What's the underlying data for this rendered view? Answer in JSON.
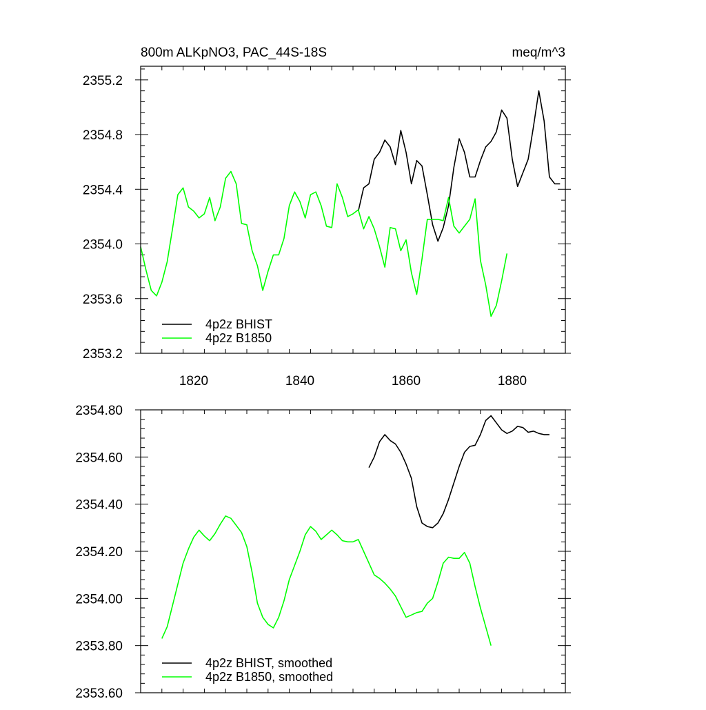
{
  "colors": {
    "bhist": "#000000",
    "b1850": "#00ff00",
    "background": "#ffffff"
  },
  "chart_data": [
    {
      "type": "line",
      "title_left": "800m ALKpNO3, PAC_44S-18S",
      "title_right": "meq/m^3",
      "xlim": [
        1810,
        1890
      ],
      "ylim": [
        2353.2,
        2355.3
      ],
      "x_ticks": [
        1820,
        1840,
        1860,
        1880
      ],
      "x_tick_labels": [
        "1820",
        "1840",
        "1860",
        "1880"
      ],
      "y_ticks": [
        2353.2,
        2353.6,
        2354.0,
        2354.4,
        2354.8,
        2355.2
      ],
      "y_tick_labels": [
        "2353.2",
        "2353.6",
        "2354.0",
        "2354.4",
        "2354.8",
        "2355.2"
      ],
      "legend_position": "bottom-left",
      "series": [
        {
          "name": "4p2z BHIST",
          "color": "#000000",
          "x": [
            1851,
            1852,
            1853,
            1854,
            1855,
            1856,
            1857,
            1858,
            1859,
            1860,
            1861,
            1862,
            1863,
            1864,
            1865,
            1866,
            1867,
            1868,
            1869,
            1870,
            1871,
            1872,
            1873,
            1874,
            1875,
            1876,
            1877,
            1878,
            1879,
            1880,
            1881,
            1882,
            1883,
            1884,
            1885,
            1886,
            1887,
            1888,
            1889
          ],
          "y": [
            2354.24,
            2354.41,
            2354.44,
            2354.62,
            2354.67,
            2354.76,
            2354.71,
            2354.58,
            2354.83,
            2354.67,
            2354.44,
            2354.61,
            2354.57,
            2354.36,
            2354.14,
            2354.02,
            2354.12,
            2354.28,
            2354.56,
            2354.77,
            2354.67,
            2354.49,
            2354.49,
            2354.61,
            2354.71,
            2354.75,
            2354.82,
            2354.98,
            2354.92,
            2354.62,
            2354.42,
            2354.52,
            2354.62,
            2354.86,
            2355.12,
            2354.9,
            2354.49,
            2354.44,
            2354.44
          ]
        },
        {
          "name": "4p2z B1850",
          "color": "#00ff00",
          "x": [
            1810,
            1811,
            1812,
            1813,
            1814,
            1815,
            1816,
            1817,
            1818,
            1819,
            1820,
            1821,
            1822,
            1823,
            1824,
            1825,
            1826,
            1827,
            1828,
            1829,
            1830,
            1831,
            1832,
            1833,
            1834,
            1835,
            1836,
            1837,
            1838,
            1839,
            1840,
            1841,
            1842,
            1843,
            1844,
            1845,
            1846,
            1847,
            1848,
            1849,
            1850,
            1851,
            1852,
            1853,
            1854,
            1855,
            1856,
            1857,
            1858,
            1859,
            1860,
            1861,
            1862,
            1863,
            1864,
            1865,
            1866,
            1867,
            1868,
            1869,
            1870,
            1871,
            1872,
            1873,
            1874,
            1875,
            1876,
            1877,
            1878,
            1879
          ],
          "y": [
            2353.98,
            2353.81,
            2353.66,
            2353.62,
            2353.72,
            2353.87,
            2354.11,
            2354.36,
            2354.41,
            2354.27,
            2354.24,
            2354.19,
            2354.22,
            2354.34,
            2354.17,
            2354.27,
            2354.48,
            2354.53,
            2354.44,
            2354.15,
            2354.14,
            2353.95,
            2353.84,
            2353.66,
            2353.8,
            2353.92,
            2353.92,
            2354.04,
            2354.28,
            2354.38,
            2354.31,
            2354.19,
            2354.36,
            2354.38,
            2354.28,
            2354.13,
            2354.12,
            2354.44,
            2354.34,
            2354.2,
            2354.22,
            2354.25,
            2354.11,
            2354.2,
            2354.11,
            2353.98,
            2353.83,
            2354.12,
            2354.11,
            2353.95,
            2354.03,
            2353.79,
            2353.63,
            2353.89,
            2354.18,
            2354.18,
            2354.18,
            2354.17,
            2354.34,
            2354.13,
            2354.08,
            2354.13,
            2354.18,
            2354.33,
            2353.88,
            2353.7,
            2353.47,
            2353.55,
            2353.73,
            2353.93
          ]
        }
      ]
    },
    {
      "type": "line",
      "xlim": [
        1810,
        1890
      ],
      "ylim": [
        2353.6,
        2354.8
      ],
      "x_ticks": [
        1820,
        1840,
        1860,
        1880
      ],
      "y_ticks": [
        2353.6,
        2353.8,
        2354.0,
        2354.2,
        2354.4,
        2354.6,
        2354.8
      ],
      "y_tick_labels": [
        "2353.60",
        "2353.80",
        "2354.00",
        "2354.20",
        "2354.40",
        "2354.60",
        "2354.80"
      ],
      "legend_position": "bottom-left",
      "series": [
        {
          "name": "4p2z BHIST, smoothed",
          "color": "#000000",
          "x": [
            1853,
            1854,
            1855,
            1856,
            1857,
            1858,
            1859,
            1860,
            1861,
            1862,
            1863,
            1864,
            1865,
            1866,
            1867,
            1868,
            1869,
            1870,
            1871,
            1872,
            1873,
            1874,
            1875,
            1876,
            1877,
            1878,
            1879,
            1880,
            1881,
            1882,
            1883,
            1884,
            1885,
            1886,
            1887
          ],
          "y": [
            2354.555,
            2354.6,
            2354.665,
            2354.695,
            2354.67,
            2354.655,
            2354.62,
            2354.57,
            2354.51,
            2354.39,
            2354.32,
            2354.305,
            2354.3,
            2354.32,
            2354.36,
            2354.42,
            2354.49,
            2354.56,
            2354.62,
            2354.645,
            2354.65,
            2354.695,
            2354.755,
            2354.775,
            2354.745,
            2354.715,
            2354.7,
            2354.71,
            2354.73,
            2354.725,
            2354.705,
            2354.71,
            2354.7,
            2354.695,
            2354.695
          ]
        },
        {
          "name": "4p2z B1850, smoothed",
          "color": "#00ff00",
          "x": [
            1814,
            1815,
            1816,
            1817,
            1818,
            1819,
            1820,
            1821,
            1822,
            1823,
            1824,
            1825,
            1826,
            1827,
            1828,
            1829,
            1830,
            1831,
            1832,
            1833,
            1834,
            1835,
            1836,
            1837,
            1838,
            1839,
            1840,
            1841,
            1842,
            1843,
            1844,
            1845,
            1846,
            1847,
            1848,
            1849,
            1850,
            1851,
            1852,
            1853,
            1854,
            1855,
            1856,
            1857,
            1858,
            1859,
            1860,
            1861,
            1862,
            1863,
            1864,
            1865,
            1866,
            1867,
            1868,
            1869,
            1870,
            1871,
            1872,
            1873,
            1874,
            1875,
            1876
          ],
          "y": [
            2353.83,
            2353.88,
            2353.97,
            2354.06,
            2354.15,
            2354.21,
            2354.26,
            2354.29,
            2354.265,
            2354.245,
            2354.275,
            2354.315,
            2354.35,
            2354.34,
            2354.31,
            2354.28,
            2354.22,
            2354.11,
            2353.98,
            2353.92,
            2353.89,
            2353.875,
            2353.92,
            2353.99,
            2354.08,
            2354.14,
            2354.2,
            2354.27,
            2354.305,
            2354.285,
            2354.25,
            2354.27,
            2354.29,
            2354.27,
            2354.245,
            2354.24,
            2354.24,
            2354.25,
            2354.2,
            2354.15,
            2354.1,
            2354.085,
            2354.065,
            2354.04,
            2354.01,
            2353.965,
            2353.92,
            2353.93,
            2353.94,
            2353.945,
            2353.98,
            2354.0,
            2354.07,
            2354.15,
            2354.175,
            2354.17,
            2354.17,
            2354.195,
            2354.15,
            2354.05,
            2353.96,
            2353.88,
            2353.8
          ]
        }
      ]
    }
  ]
}
